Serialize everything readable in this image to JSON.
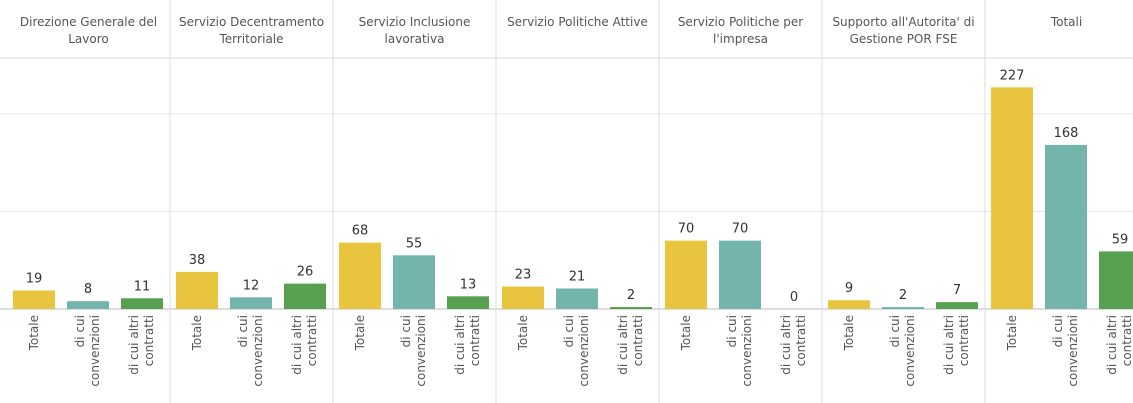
{
  "chart_data": {
    "type": "bar",
    "groups": [
      "Direzione Generale del Lavoro",
      "Servizio Decentramento Territoriale",
      "Servizio Inclusione lavorativa",
      "Servizio Politiche Attive",
      "Servizio Politiche per l'impresa",
      "Supporto all'Autorita' di Gestione POR FSE",
      "Totali"
    ],
    "series": [
      {
        "name": "Totale",
        "color": "#e9c53f",
        "values": [
          19,
          38,
          68,
          23,
          70,
          9,
          227
        ]
      },
      {
        "name": "di cui convenzioni",
        "color": "#73b5ad",
        "values": [
          8,
          12,
          55,
          21,
          70,
          2,
          168
        ]
      },
      {
        "name": "di cui altri contratti",
        "color": "#56a04f",
        "values": [
          11,
          26,
          13,
          2,
          0,
          7,
          59
        ]
      }
    ],
    "ylim": [
      0,
      255
    ],
    "yticks": [
      0,
      100,
      200
    ],
    "grid": true
  }
}
